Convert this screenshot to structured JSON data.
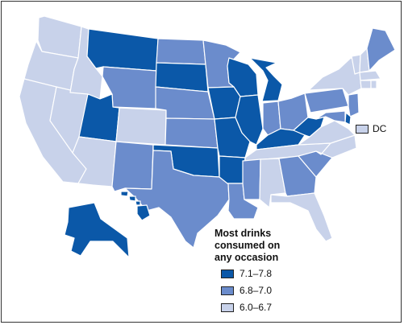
{
  "legend": {
    "title": [
      "Most drinks",
      "consumed on",
      "any occasion"
    ],
    "items": [
      {
        "label": "7.1–7.8",
        "color": "#0b58a8"
      },
      {
        "label": "6.8–7.0",
        "color": "#6b8ccc"
      },
      {
        "label": "6.0–6.7",
        "color": "#c8d2ea"
      }
    ]
  },
  "dc": {
    "label": "DC",
    "category": 2
  },
  "states": {
    "WA": 2,
    "OR": 2,
    "CA": 2,
    "NV": 2,
    "ID": 2,
    "MT": 0,
    "WY": 1,
    "UT": 0,
    "AZ": 2,
    "CO": 2,
    "NM": 1,
    "ND": 1,
    "SD": 0,
    "NE": 1,
    "KS": 1,
    "OK": 0,
    "TX": 1,
    "MN": 1,
    "IA": 0,
    "MO": 0,
    "AR": 0,
    "LA": 1,
    "WI": 0,
    "IL": 0,
    "MI": 0,
    "IN": 1,
    "OH": 1,
    "KY": 0,
    "TN": 2,
    "MS": 1,
    "AL": 2,
    "GA": 1,
    "FL": 2,
    "SC": 1,
    "NC": 2,
    "VA": 2,
    "WV": 0,
    "PA": 1,
    "NY": 2,
    "VT": 2,
    "NH": 2,
    "ME": 1,
    "MA": 2,
    "RI": 2,
    "CT": 2,
    "NJ": 1,
    "DE": 0,
    "MD": 1,
    "AK": 0,
    "HI": 0
  }
}
